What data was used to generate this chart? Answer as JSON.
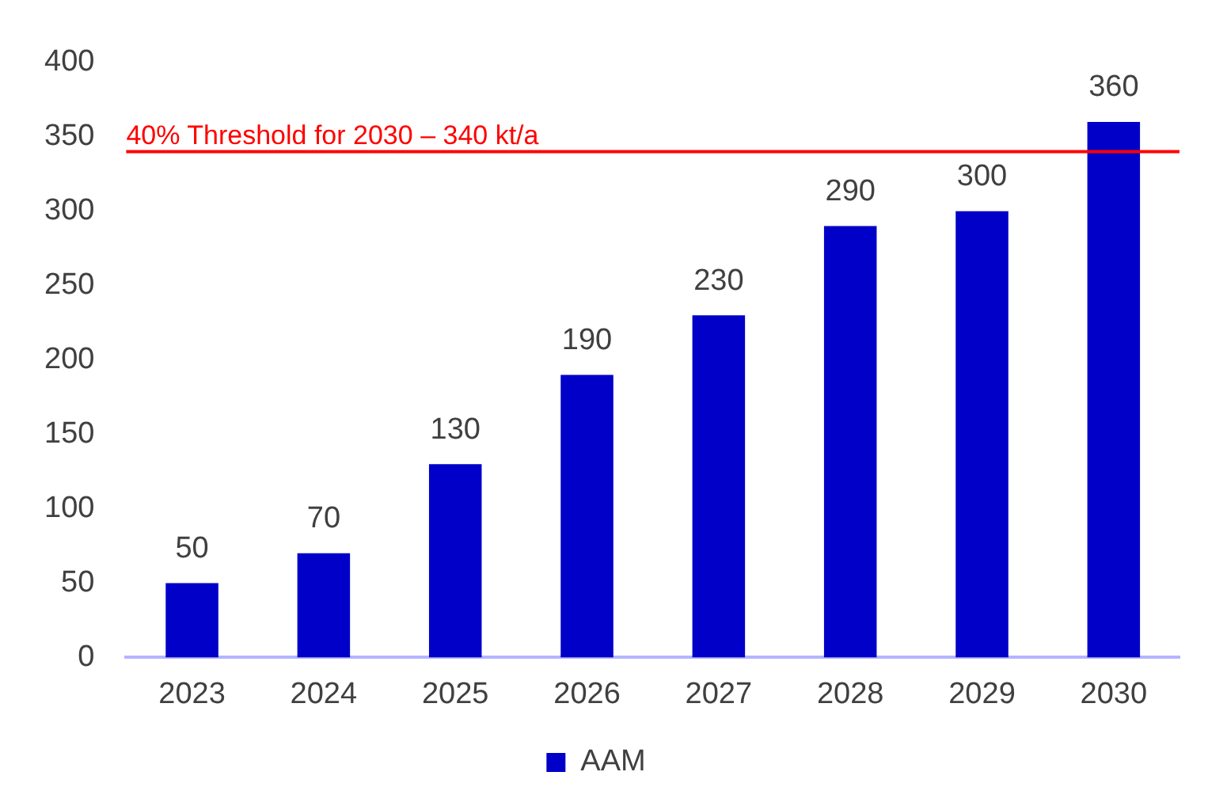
{
  "chart_data": {
    "type": "bar",
    "categories": [
      "2023",
      "2024",
      "2025",
      "2026",
      "2027",
      "2028",
      "2029",
      "2030"
    ],
    "series": [
      {
        "name": "AAM",
        "color": "#0000c8",
        "values": [
          50,
          70,
          130,
          190,
          230,
          290,
          300,
          360
        ]
      }
    ],
    "ylim": [
      0,
      400
    ],
    "yticks": [
      0,
      50,
      100,
      150,
      200,
      250,
      300,
      350,
      400
    ],
    "grid": false,
    "legend": "bottom",
    "data_labels": true,
    "ref_lines": [
      {
        "axis": "y",
        "value": 340,
        "label": "40% Threshold for 2030 – 340 kt/a",
        "color": "#ff0000"
      }
    ]
  }
}
